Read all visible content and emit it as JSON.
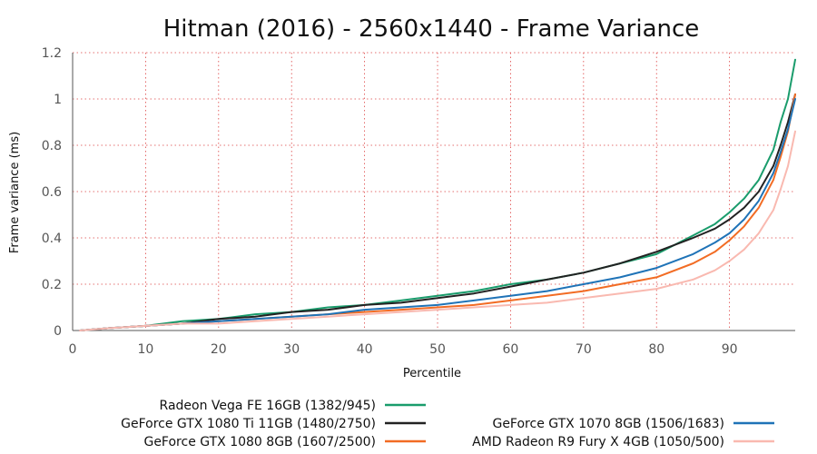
{
  "chart_data": {
    "type": "line",
    "title": "Hitman (2016) - 2560x1440 - Frame Variance",
    "xlabel": "Percentile",
    "ylabel": "Frame variance (ms)",
    "xlim": [
      0,
      99
    ],
    "ylim": [
      0,
      1.2
    ],
    "xticks": [
      0,
      10,
      20,
      30,
      40,
      50,
      60,
      70,
      80,
      90
    ],
    "yticks": [
      0,
      0.2,
      0.4,
      0.6,
      0.8,
      1,
      1.2
    ],
    "grid": true,
    "legend_position": "bottom",
    "series": [
      {
        "name": "Radeon Vega FE 16GB (1382/945)",
        "color": "#1a9c6c",
        "x": [
          1,
          5,
          10,
          15,
          20,
          25,
          30,
          35,
          40,
          45,
          50,
          55,
          60,
          65,
          70,
          75,
          80,
          85,
          88,
          90,
          92,
          94,
          96,
          97,
          98,
          99
        ],
        "y": [
          0,
          0.01,
          0.02,
          0.04,
          0.05,
          0.07,
          0.08,
          0.1,
          0.11,
          0.13,
          0.15,
          0.17,
          0.2,
          0.22,
          0.25,
          0.29,
          0.33,
          0.41,
          0.46,
          0.51,
          0.57,
          0.65,
          0.78,
          0.9,
          1.0,
          1.17
        ]
      },
      {
        "name": "GeForce GTX 1080 Ti 11GB (1480/2750)",
        "color": "#222222",
        "x": [
          1,
          5,
          10,
          15,
          20,
          25,
          30,
          35,
          40,
          45,
          50,
          55,
          60,
          65,
          70,
          75,
          80,
          85,
          88,
          90,
          92,
          94,
          96,
          97,
          98,
          99
        ],
        "y": [
          0,
          0.01,
          0.02,
          0.03,
          0.05,
          0.06,
          0.08,
          0.09,
          0.11,
          0.12,
          0.14,
          0.16,
          0.19,
          0.22,
          0.25,
          0.29,
          0.34,
          0.4,
          0.44,
          0.48,
          0.53,
          0.6,
          0.71,
          0.8,
          0.9,
          1.02
        ]
      },
      {
        "name": "GeForce GTX 1080 8GB (1607/2500)",
        "color": "#f26c24",
        "x": [
          1,
          5,
          10,
          15,
          20,
          25,
          30,
          35,
          40,
          45,
          50,
          55,
          60,
          65,
          70,
          75,
          80,
          85,
          88,
          90,
          92,
          94,
          96,
          97,
          98,
          99
        ],
        "y": [
          0,
          0.01,
          0.02,
          0.03,
          0.04,
          0.05,
          0.06,
          0.07,
          0.08,
          0.09,
          0.1,
          0.11,
          0.13,
          0.15,
          0.17,
          0.2,
          0.23,
          0.29,
          0.34,
          0.39,
          0.45,
          0.53,
          0.65,
          0.75,
          0.86,
          1.02
        ]
      },
      {
        "name": "GeForce GTX 1070 8GB (1506/1683)",
        "color": "#1f73b7",
        "x": [
          1,
          5,
          10,
          15,
          20,
          25,
          30,
          35,
          40,
          45,
          50,
          55,
          60,
          65,
          70,
          75,
          80,
          85,
          88,
          90,
          92,
          94,
          96,
          97,
          98,
          99
        ],
        "y": [
          0,
          0.01,
          0.02,
          0.03,
          0.04,
          0.05,
          0.06,
          0.07,
          0.09,
          0.1,
          0.11,
          0.13,
          0.15,
          0.17,
          0.2,
          0.23,
          0.27,
          0.33,
          0.38,
          0.42,
          0.48,
          0.56,
          0.68,
          0.77,
          0.87,
          1.0
        ]
      },
      {
        "name": "AMD Radeon R9 Fury X 4GB (1050/500)",
        "color": "#f9b9b0",
        "x": [
          1,
          5,
          10,
          15,
          20,
          25,
          30,
          35,
          40,
          45,
          50,
          55,
          60,
          65,
          70,
          75,
          80,
          85,
          88,
          90,
          92,
          94,
          96,
          97,
          98,
          99
        ],
        "y": [
          0,
          0.01,
          0.02,
          0.03,
          0.03,
          0.04,
          0.05,
          0.06,
          0.07,
          0.08,
          0.09,
          0.1,
          0.11,
          0.12,
          0.14,
          0.16,
          0.18,
          0.22,
          0.26,
          0.3,
          0.35,
          0.42,
          0.52,
          0.61,
          0.71,
          0.86
        ]
      }
    ]
  }
}
